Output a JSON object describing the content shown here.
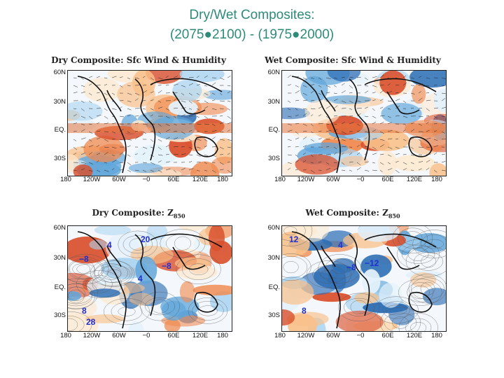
{
  "title": {
    "line1": "Dry/Wet Composites:",
    "line2": "(2075●2100) - (1975●2000)"
  },
  "axes": {
    "y_ticks": [
      "60N",
      "30N",
      "EQ.",
      "30S"
    ],
    "x_ticks": [
      "180",
      "120W",
      "60W",
      "−0",
      "60E",
      "120E",
      "180"
    ]
  },
  "panels": [
    {
      "title": "Dry Composite: Sfc Wind & Humidity",
      "contour_labels": []
    },
    {
      "title": "Wet Composite: Sfc Wind & Humidity",
      "contour_labels": []
    },
    {
      "title": "Dry Composite: Z",
      "title_sub": "850",
      "contour_labels": [
        "4",
        "20",
        "−8",
        "−8",
        "4",
        "8",
        "28"
      ]
    },
    {
      "title": "Wet Composite: Z",
      "title_sub": "850",
      "contour_labels": [
        "12",
        "4",
        "−8",
        "−12",
        "8"
      ]
    }
  ],
  "colors": {
    "title": "#2e8b7a",
    "contour_label": "#1f2fd0"
  }
}
